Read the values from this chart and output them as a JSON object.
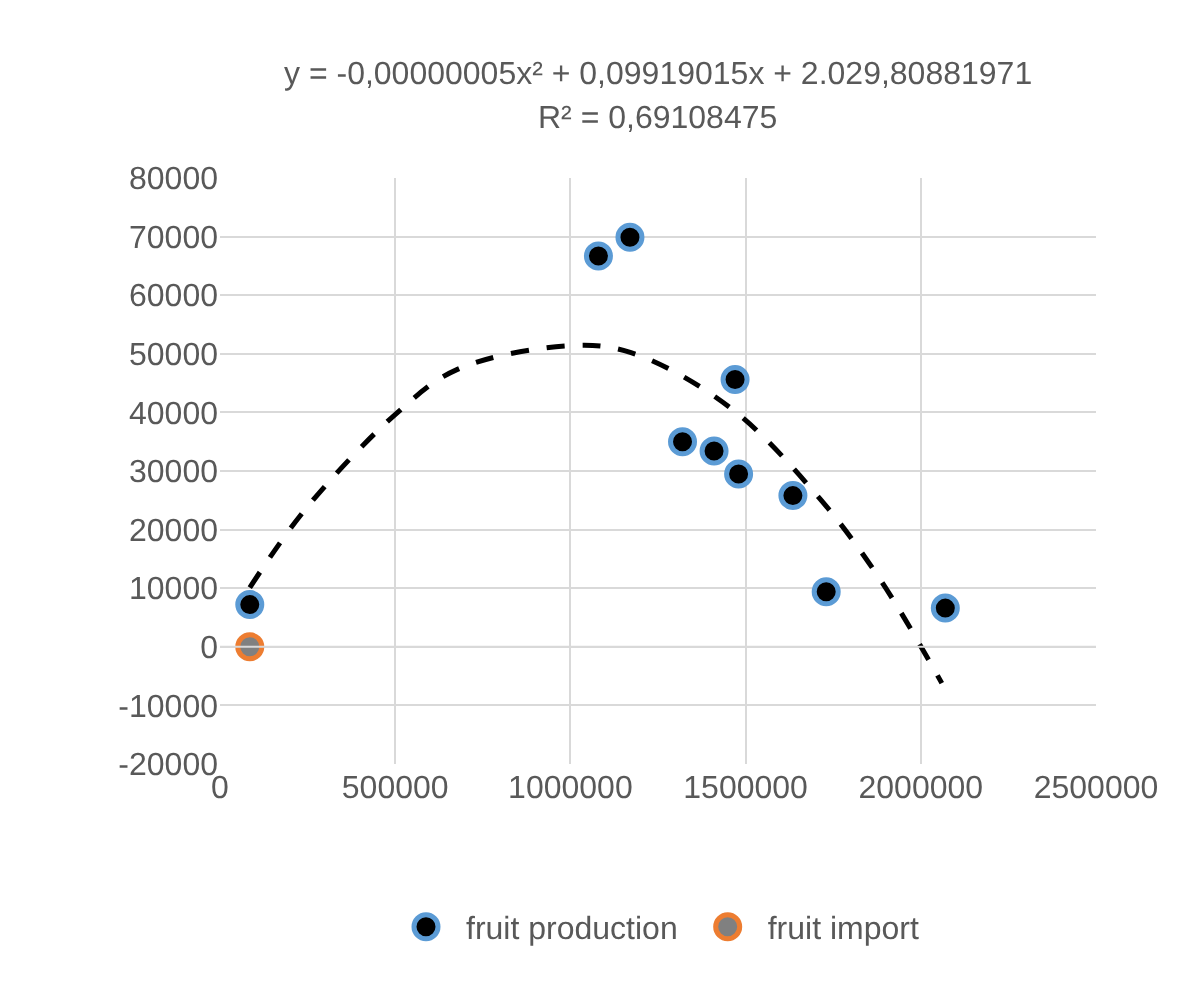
{
  "chart_data": {
    "type": "scatter",
    "annotations": [
      "y = -0,00000005x² + 0,09919015x + 2.029,80881971",
      "R² = 0,69108475"
    ],
    "series": [
      {
        "name": "fruit production",
        "color": "#000000",
        "x": [
          85000,
          1080000,
          1170000,
          1320000,
          1410000,
          1470000,
          1480000,
          1635000,
          1730000,
          2070000
        ],
        "values": [
          7200,
          66700,
          69900,
          35000,
          33400,
          45600,
          29500,
          25800,
          9400,
          6600
        ]
      },
      {
        "name": "fruit import",
        "color": "#808080",
        "x": [
          85000
        ],
        "values": [
          0
        ]
      },
      {
        "type": "line",
        "color": "#000000",
        "line_style": "dashed",
        "marker": "none",
        "x": [
          85000,
          244000,
          503000,
          676000,
          1000000,
          1173000,
          1454000,
          1713000,
          1886000,
          2060000
        ],
        "values": [
          10100,
          23500,
          39800,
          47300,
          51400,
          50200,
          40900,
          25200,
          11300,
          -6200
        ]
      }
    ],
    "xlim": [
      0,
      2500000
    ],
    "xticks": [
      0,
      500000,
      1000000,
      1500000,
      2000000,
      2500000
    ],
    "ylim": [
      -20000,
      80000
    ],
    "yticks": [
      -20000,
      -10000,
      0,
      10000,
      20000,
      30000,
      40000,
      50000,
      60000,
      70000,
      80000
    ],
    "grid": true,
    "legend": "bottom",
    "marker": "circle"
  }
}
